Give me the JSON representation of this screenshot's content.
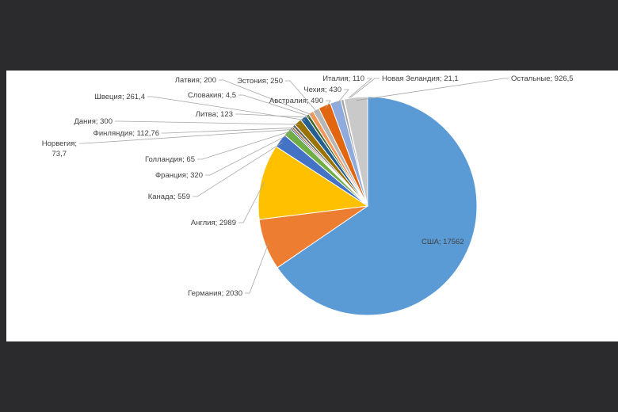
{
  "chart_data": {
    "type": "pie",
    "title": "",
    "legend": "none",
    "label_format": "name; value",
    "slices": [
      {
        "name": "США",
        "label": "США; 17562",
        "value": 17562,
        "color": "#5b9bd5"
      },
      {
        "name": "Германия",
        "label": "Германия; 2030",
        "value": 2030,
        "color": "#ed7d31"
      },
      {
        "name": "Англия",
        "label": "Англия; 2989",
        "value": 2989,
        "color": "#ffc000"
      },
      {
        "name": "Канада",
        "label": "Канада; 559",
        "value": 559,
        "color": "#4472c4"
      },
      {
        "name": "Франция",
        "label": "Франция; 320",
        "value": 320,
        "color": "#70ad47"
      },
      {
        "name": "Голландия",
        "label": "Голландия; 65",
        "value": 65,
        "color": "#264478"
      },
      {
        "name": "Норвегия",
        "label": "Норвегия; 73,7",
        "value": 73.7,
        "color": "#9e480e"
      },
      {
        "name": "Финляндия",
        "label": "Финляндия; 112,76",
        "value": 112.76,
        "color": "#636363"
      },
      {
        "name": "Дания",
        "label": "Дания; 300",
        "value": 300,
        "color": "#997300"
      },
      {
        "name": "Швеция",
        "label": "Швеция; 261,4",
        "value": 261.4,
        "color": "#255e91"
      },
      {
        "name": "Литва",
        "label": "Литва; 123",
        "value": 123,
        "color": "#43682b"
      },
      {
        "name": "Словакия",
        "label": "Словакия; 4,5",
        "value": 4.5,
        "color": "#698ed0"
      },
      {
        "name": "Латвия",
        "label": "Латвия; 200",
        "value": 200,
        "color": "#f1975a"
      },
      {
        "name": "Эстония",
        "label": "Эстония; 250",
        "value": 250,
        "color": "#b7b7b7"
      },
      {
        "name": "Австралия",
        "label": "Австралия; 490",
        "value": 490,
        "color": "#e2650f"
      },
      {
        "name": "Чехия",
        "label": "Чехия; 430",
        "value": 430,
        "color": "#8faadc"
      },
      {
        "name": "Италия",
        "label": "Италия; 110",
        "value": 110,
        "color": "#a5a5a5"
      },
      {
        "name": "Новая Зеландия",
        "label": "Новая Зеландия; 21,1",
        "value": 21.1,
        "color": "#548235"
      },
      {
        "name": "Остальные",
        "label": "Остальные; 926,5",
        "value": 926.5,
        "color": "#c9c9c9"
      }
    ]
  }
}
